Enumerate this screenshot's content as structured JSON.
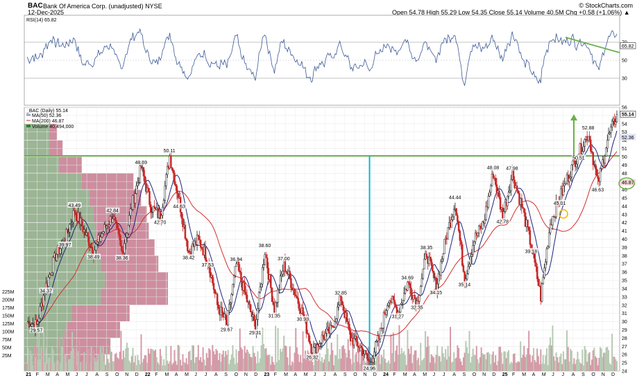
{
  "header": {
    "symbol": "BAC",
    "company": "Bank Of America Corp. (unadjusted) NYSE",
    "date": "12-Dec-2025",
    "watermark": "© StockCharts.com",
    "quote": "Open 54.78  High 55.29  Low 54.35  Close 55.14  Volume 40.5M  Chg +0.58 (+1.06%) ▲"
  },
  "rsi_panel": {
    "label": "RSI(14) 65.82",
    "levels": [
      "70",
      "50",
      "30"
    ],
    "current": "65.82"
  },
  "price_panel": {
    "title_label": "_BAC (Daily) 55.14",
    "legend": [
      {
        "text": "MA(50) 52.36",
        "color": "#1a237e"
      },
      {
        "text": "MA(200) 46.87",
        "color": "#d32f2f"
      },
      {
        "text": "Volume 40,494,000",
        "color": "#2e7d32"
      }
    ],
    "last_price": "55.14",
    "ma50_value": "52.36",
    "ma200_value": "46.87"
  },
  "chart_data": {
    "type": "candlestick",
    "title": "BAC",
    "ylim": [
      24,
      56
    ],
    "y_ticks": [
      "56",
      "55",
      "54",
      "53",
      "52",
      "51",
      "50",
      "49",
      "48",
      "47",
      "46",
      "45",
      "44",
      "43",
      "42",
      "41",
      "40",
      "39",
      "38",
      "37",
      "36",
      "35",
      "34",
      "33",
      "32",
      "31",
      "30",
      "29",
      "28",
      "27",
      "26",
      "25",
      "24"
    ],
    "volume_ticks": [
      "225M",
      "200M",
      "175M",
      "150M",
      "125M",
      "100M",
      "75M",
      "50M",
      "25M"
    ],
    "x_labels": [
      "21",
      "F",
      "M",
      "A",
      "M",
      "J",
      "J",
      "A",
      "S",
      "O",
      "N",
      "D",
      "22",
      "F",
      "M",
      "A",
      "M",
      "J",
      "J",
      "A",
      "S",
      "O",
      "N",
      "D",
      "23",
      "F",
      "M",
      "A",
      "M",
      "J",
      "J",
      "A",
      "S",
      "O",
      "N",
      "D",
      "24",
      "F",
      "M",
      "A",
      "M",
      "J",
      "J",
      "A",
      "S",
      "O",
      "N",
      "D",
      "25",
      "F",
      "M",
      "A",
      "M",
      "J",
      "J",
      "A",
      "S",
      "O",
      "N",
      "D"
    ],
    "price_path": [
      [
        "2021-01",
        30.0
      ],
      [
        "2021-01-mid",
        29.57
      ],
      [
        "2021-02",
        34.37
      ],
      [
        "2021-03",
        38.0
      ],
      [
        "2021-04",
        39.97
      ],
      [
        "2021-05",
        43.49
      ],
      [
        "2021-06",
        41.0
      ],
      [
        "2021-07",
        38.49
      ],
      [
        "2021-08",
        41.0
      ],
      [
        "2021-09",
        42.84
      ],
      [
        "2021-09-b",
        38.36
      ],
      [
        "2021-10",
        44.0
      ],
      [
        "2021-11",
        48.69
      ],
      [
        "2021-12",
        44.0
      ],
      [
        "2022-01",
        42.7
      ],
      [
        "2022-02",
        50.11
      ],
      [
        "2022-02-b",
        44.63
      ],
      [
        "2022-03",
        38.42
      ],
      [
        "2022-04",
        40.0
      ],
      [
        "2022-05",
        37.53
      ],
      [
        "2022-06",
        32.0
      ],
      [
        "2022-07",
        29.67
      ],
      [
        "2022-08",
        36.94
      ],
      [
        "2022-09",
        33.0
      ],
      [
        "2022-10",
        29.31
      ],
      [
        "2022-11",
        38.6
      ],
      [
        "2022-12",
        31.35
      ],
      [
        "2023-01",
        37.0
      ],
      [
        "2023-02",
        34.0
      ],
      [
        "2023-03",
        30.93
      ],
      [
        "2023-04",
        26.32
      ],
      [
        "2023-05",
        28.0
      ],
      [
        "2023-06",
        29.0
      ],
      [
        "2023-07",
        32.85
      ],
      [
        "2023-08",
        28.0
      ],
      [
        "2023-09",
        27.0
      ],
      [
        "2023-10",
        24.96
      ],
      [
        "2023-11",
        28.0
      ],
      [
        "2023-12",
        33.0
      ],
      [
        "2024-01",
        31.27
      ],
      [
        "2024-02",
        34.69
      ],
      [
        "2024-03",
        32.35
      ],
      [
        "2024-04",
        38.35
      ],
      [
        "2024-05",
        34.15
      ],
      [
        "2024-06",
        40.0
      ],
      [
        "2024-07",
        44.44
      ],
      [
        "2024-08",
        35.14
      ],
      [
        "2024-09",
        40.0
      ],
      [
        "2024-10",
        42.0
      ],
      [
        "2024-11",
        48.08
      ],
      [
        "2024-12",
        42.78
      ],
      [
        "2025-01",
        47.98
      ],
      [
        "2025-02",
        44.0
      ],
      [
        "2025-03",
        39.18
      ],
      [
        "2025-04",
        33.0
      ],
      [
        "2025-05",
        42.0
      ],
      [
        "2025-06",
        45.01
      ],
      [
        "2025-07",
        48.0
      ],
      [
        "2025-08",
        50.51
      ],
      [
        "2025-09",
        52.88
      ],
      [
        "2025-10",
        46.63
      ],
      [
        "2025-11",
        52.0
      ],
      [
        "2025-12",
        55.14
      ]
    ],
    "annotations": [
      "29.57",
      "34.37",
      "39.97",
      "43.49",
      "38.49",
      "42.84",
      "36.51",
      "38.36",
      "48.69",
      "42.70",
      "50.11",
      "44.63",
      "38.42",
      "37.53",
      "29.67",
      "36.94",
      "29.31",
      "38.60",
      "31.35",
      "37.00",
      "30.93",
      "26.32",
      "32.85",
      "24.96",
      "31.27",
      "34.69",
      "32.35",
      "38.35",
      "34.15",
      "44.44",
      "35.14",
      "48.08",
      "42.78",
      "47.98",
      "39.18",
      "45.01",
      "50.51",
      "52.88",
      "46.63"
    ],
    "horizontal_line": 50.11,
    "vertical_marker": "2023-10",
    "arrow_note": "up",
    "volume_by_price": [
      {
        "price_low": 24,
        "price_high": 26,
        "up": 0.22,
        "down": 0.2
      },
      {
        "price_low": 26,
        "price_high": 28,
        "up": 0.2,
        "down": 0.25
      },
      {
        "price_low": 28,
        "price_high": 30,
        "up": 0.22,
        "down": 0.28
      },
      {
        "price_low": 30,
        "price_high": 32,
        "up": 0.25,
        "down": 0.3
      },
      {
        "price_low": 32,
        "price_high": 34,
        "up": 0.4,
        "down": 0.35
      },
      {
        "price_low": 34,
        "price_high": 36,
        "up": 0.42,
        "down": 0.33
      },
      {
        "price_low": 36,
        "price_high": 38,
        "up": 0.4,
        "down": 0.3
      },
      {
        "price_low": 38,
        "price_high": 40,
        "up": 0.38,
        "down": 0.3
      },
      {
        "price_low": 40,
        "price_high": 42,
        "up": 0.37,
        "down": 0.28
      },
      {
        "price_low": 42,
        "price_high": 44,
        "up": 0.36,
        "down": 0.28
      },
      {
        "price_low": 44,
        "price_high": 46,
        "up": 0.34,
        "down": 0.27
      },
      {
        "price_low": 46,
        "price_high": 48,
        "up": 0.3,
        "down": 0.27
      },
      {
        "price_low": 48,
        "price_high": 50,
        "up": 0.18,
        "down": 0.12
      },
      {
        "price_low": 50,
        "price_high": 52,
        "up": 0.13,
        "down": 0.07
      },
      {
        "price_low": 52,
        "price_high": 54,
        "up": 0.13,
        "down": 0.04
      }
    ],
    "colors": {
      "up": "#2e7d32",
      "down": "#c62828",
      "ma50": "#1a237e",
      "ma200": "#d32f2f",
      "hline": "#6ab04c",
      "vline": "#00bcd4",
      "vbp_up": "#8aa883",
      "vbp_down": "#c47a8e"
    }
  }
}
